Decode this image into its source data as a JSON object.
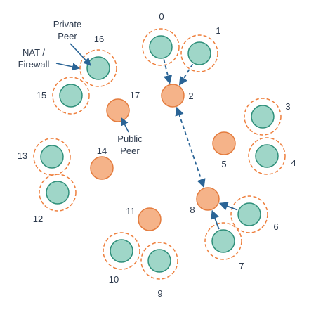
{
  "colors": {
    "private_fill": "#9fd6c8",
    "private_stroke": "#2e8f7a",
    "public_fill": "#f5b389",
    "public_stroke": "#e47c3e",
    "firewall_ring": "#ee7f3d",
    "arrow": "#2a6496",
    "text": "#2d3a4d"
  },
  "nodes": [
    {
      "id": "0",
      "label": "0",
      "kind": "private"
    },
    {
      "id": "1",
      "label": "1",
      "kind": "private"
    },
    {
      "id": "2",
      "label": "2",
      "kind": "public"
    },
    {
      "id": "3",
      "label": "3",
      "kind": "private"
    },
    {
      "id": "4",
      "label": "4",
      "kind": "private"
    },
    {
      "id": "5",
      "label": "5",
      "kind": "public"
    },
    {
      "id": "6",
      "label": "6",
      "kind": "private"
    },
    {
      "id": "7",
      "label": "7",
      "kind": "private"
    },
    {
      "id": "8",
      "label": "8",
      "kind": "public"
    },
    {
      "id": "9",
      "label": "9",
      "kind": "private"
    },
    {
      "id": "10",
      "label": "10",
      "kind": "private"
    },
    {
      "id": "11",
      "label": "11",
      "kind": "public"
    },
    {
      "id": "12",
      "label": "12",
      "kind": "private"
    },
    {
      "id": "13",
      "label": "13",
      "kind": "private"
    },
    {
      "id": "14",
      "label": "14",
      "kind": "public"
    },
    {
      "id": "15",
      "label": "15",
      "kind": "private"
    },
    {
      "id": "16",
      "label": "16",
      "kind": "private"
    },
    {
      "id": "17",
      "label": "17",
      "kind": "public"
    }
  ],
  "connections": [
    {
      "from": "0",
      "to": "2",
      "style": "dashed",
      "direction": "to"
    },
    {
      "from": "1",
      "to": "2",
      "style": "dashed",
      "direction": "to"
    },
    {
      "from": "2",
      "to": "8",
      "style": "dashed",
      "direction": "both"
    },
    {
      "from": "6",
      "to": "8",
      "style": "solid",
      "direction": "to"
    },
    {
      "from": "7",
      "to": "8",
      "style": "solid",
      "direction": "to"
    }
  ],
  "annotations": {
    "private_peer": [
      "Private",
      "Peer"
    ],
    "nat_firewall": [
      "NAT /",
      "Firewall"
    ],
    "public_peer": [
      "Public",
      "Peer"
    ]
  }
}
